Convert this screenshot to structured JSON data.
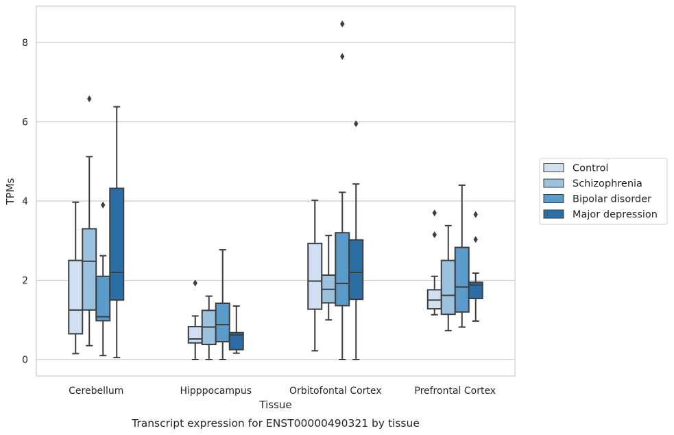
{
  "chart_data": {
    "type": "box",
    "caption": "Transcript expression for ENST00000490321 by tissue",
    "xlabel": "Tissue",
    "ylabel": "TPMs",
    "ylim": [
      -0.4,
      8.9
    ],
    "yticks": [
      0,
      2,
      4,
      6,
      8
    ],
    "grid": "horizontal",
    "legend_position": "right",
    "categories": [
      "Cerebellum",
      "Hipppocampus",
      "Orbitofontal Cortex",
      "Prefrontal Cortex"
    ],
    "series": [
      {
        "name": "Control",
        "color": "#d0e0f2",
        "boxes": [
          {
            "whislo": 0.15,
            "q1": 0.65,
            "med": 1.25,
            "q3": 2.5,
            "whishi": 3.97,
            "fliers": []
          },
          {
            "whislo": 0.0,
            "q1": 0.42,
            "med": 0.52,
            "q3": 0.83,
            "whishi": 1.1,
            "fliers": [
              1.93
            ]
          },
          {
            "whislo": 0.22,
            "q1": 1.27,
            "med": 1.98,
            "q3": 2.93,
            "whishi": 4.02,
            "fliers": []
          },
          {
            "whislo": 1.13,
            "q1": 1.28,
            "med": 1.5,
            "q3": 1.76,
            "whishi": 2.1,
            "fliers": [
              3.15,
              3.7
            ]
          }
        ]
      },
      {
        "name": "Schizophrenia",
        "color": "#9bc3df",
        "boxes": [
          {
            "whislo": 0.35,
            "q1": 1.25,
            "med": 2.48,
            "q3": 3.3,
            "whishi": 5.12,
            "fliers": [
              6.58
            ]
          },
          {
            "whislo": 0.0,
            "q1": 0.38,
            "med": 0.82,
            "q3": 1.24,
            "whishi": 1.6,
            "fliers": []
          },
          {
            "whislo": 1.0,
            "q1": 1.43,
            "med": 1.77,
            "q3": 2.13,
            "whishi": 3.13,
            "fliers": []
          },
          {
            "whislo": 0.73,
            "q1": 1.14,
            "med": 1.62,
            "q3": 2.5,
            "whishi": 3.38,
            "fliers": []
          }
        ]
      },
      {
        "name": "Bipolar disorder",
        "color": "#5b9bc9",
        "boxes": [
          {
            "whislo": 0.1,
            "q1": 0.98,
            "med": 1.08,
            "q3": 2.1,
            "whishi": 2.62,
            "fliers": [
              3.9
            ]
          },
          {
            "whislo": 0.0,
            "q1": 0.45,
            "med": 0.88,
            "q3": 1.42,
            "whishi": 2.77,
            "fliers": []
          },
          {
            "whislo": 0.0,
            "q1": 1.36,
            "med": 1.92,
            "q3": 3.2,
            "whishi": 4.22,
            "fliers": [
              7.65,
              8.47
            ]
          },
          {
            "whislo": 0.82,
            "q1": 1.2,
            "med": 1.83,
            "q3": 2.83,
            "whishi": 4.4,
            "fliers": []
          }
        ]
      },
      {
        "name": "Major depression",
        "color": "#2b6ea6",
        "boxes": [
          {
            "whislo": 0.05,
            "q1": 1.5,
            "med": 2.2,
            "q3": 4.32,
            "whishi": 6.38,
            "fliers": []
          },
          {
            "whislo": 0.16,
            "q1": 0.25,
            "med": 0.62,
            "q3": 0.68,
            "whishi": 1.35,
            "fliers": []
          },
          {
            "whislo": 0.0,
            "q1": 1.52,
            "med": 2.2,
            "q3": 3.02,
            "whishi": 4.43,
            "fliers": [
              5.95
            ]
          },
          {
            "whislo": 0.97,
            "q1": 1.54,
            "med": 1.88,
            "q3": 1.95,
            "whishi": 2.18,
            "fliers": [
              3.03,
              3.66
            ]
          }
        ]
      }
    ]
  }
}
